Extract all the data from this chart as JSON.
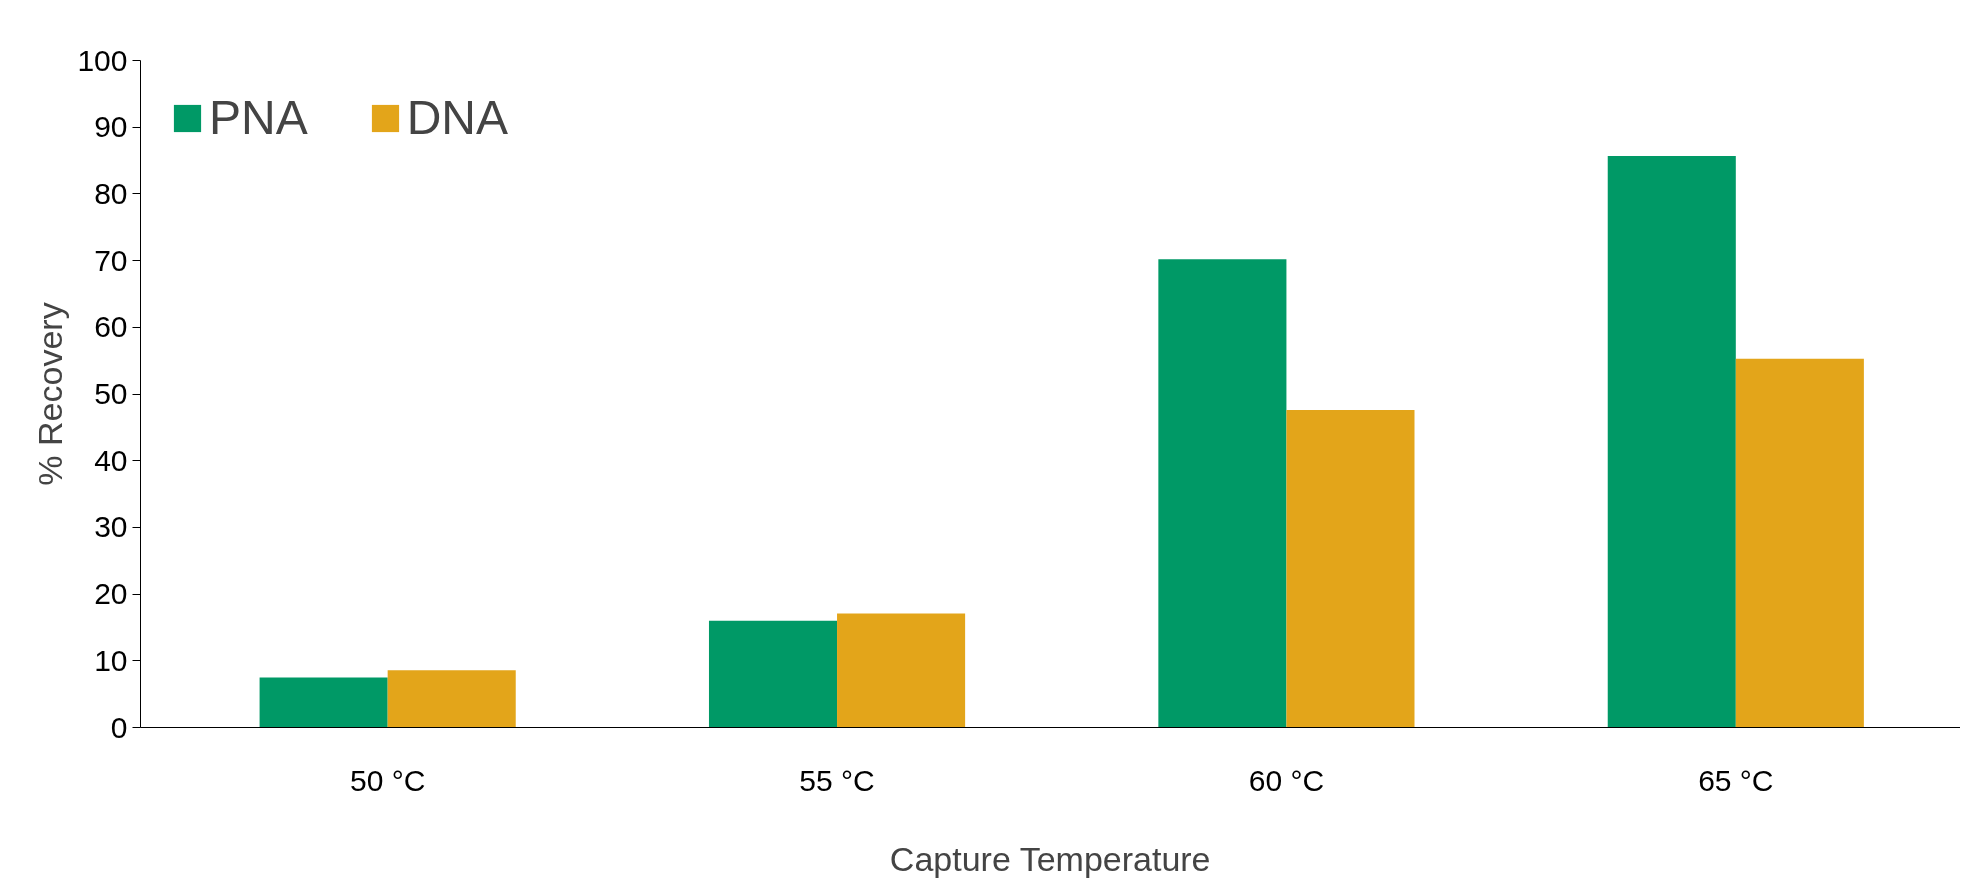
{
  "chart_data": {
    "type": "bar",
    "xlabel": "Capture Temperature",
    "ylabel": "% Recovery",
    "categories": [
      "50 °C",
      "55 °C",
      "60 °C",
      "65 °C"
    ],
    "series": [
      {
        "name": "PNA",
        "color": "#009966",
        "values": [
          7.5,
          16,
          70.2,
          85.7
        ]
      },
      {
        "name": "DNA",
        "color": "#e3a51a",
        "values": [
          8.6,
          17.1,
          47.6,
          55.3
        ]
      }
    ],
    "ylim": [
      0,
      100
    ],
    "yticks": [
      0,
      10,
      20,
      30,
      40,
      50,
      60,
      70,
      80,
      90,
      100
    ],
    "grid": false,
    "legend": "top left"
  }
}
